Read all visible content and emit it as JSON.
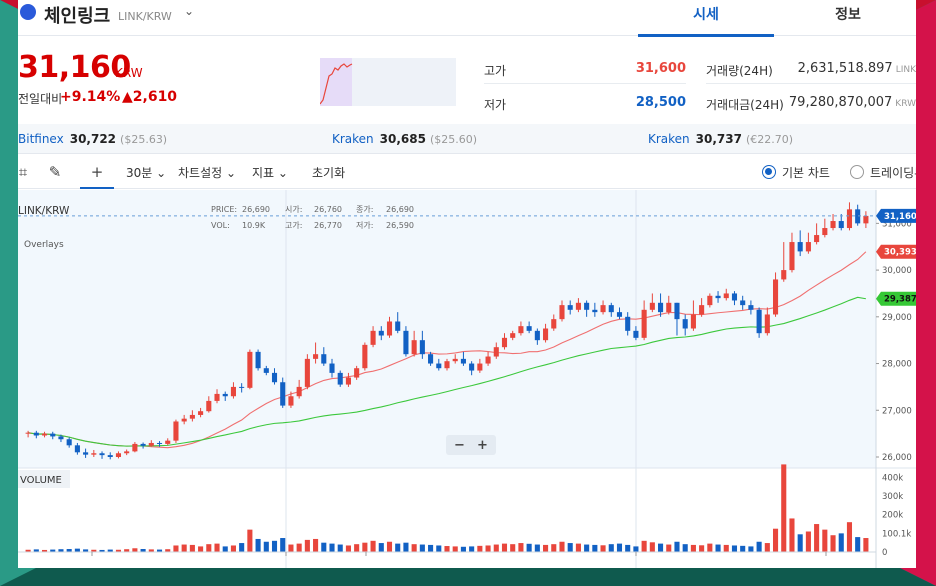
{
  "coin": {
    "name": "체인링크",
    "pair": "LINK/KRW",
    "caret": "⌄"
  },
  "tabs": {
    "quote": "시세",
    "info": "정보"
  },
  "price": {
    "current": "31,160",
    "unit": "KRW",
    "change_label": "전일대비",
    "change_pct": "+9.14%",
    "change_amt": "▲2,610"
  },
  "stats": {
    "high_label": "고가",
    "high_value": "31,600",
    "low_label": "저가",
    "low_value": "28,500",
    "volume_label": "거래량(24H)",
    "volume_value": "2,631,518.897",
    "volume_unit": "LINK",
    "amount_label": "거래대금(24H)",
    "amount_value": "79,280,870,007",
    "amount_unit": "KRW"
  },
  "exchanges": [
    {
      "name": "Bitfinex",
      "price": "30,722",
      "ref": "($25.63)"
    },
    {
      "name": "Kraken",
      "price": "30,685",
      "ref": "($25.60)"
    },
    {
      "name": "Kraken",
      "price": "30,737",
      "ref": "(€22.70)"
    }
  ],
  "toolbar": {
    "interval": "30분 ⌄",
    "chart_settings": "차트설정 ⌄",
    "indicators": "지표 ⌄",
    "reset": "초기화",
    "basic_chart": "기본 차트",
    "tradingview": "트레이딩뷰"
  },
  "colors": {
    "up": "#e8463c",
    "down": "#1261c4",
    "ma_short": "#f07070",
    "ma_long": "#3cc83c",
    "accent": "#1261c4"
  },
  "icons": [
    "crosshair-icon",
    "pencil-icon",
    "plus-icon",
    "zoom-out-icon",
    "zoom-in-icon"
  ],
  "chart_data": {
    "type": "candlestick",
    "symbol_label": "LINK/KRW",
    "overlays_label": "Overlays",
    "volume_label": "VOLUME",
    "legend": {
      "price_key": "PRICE:",
      "price_val": "26,690",
      "open_key": "시가:",
      "open_val": "26,760",
      "close_key": "종가:",
      "close_val": "26,690",
      "vol_key": "VOL:",
      "vol_val": "10.9K",
      "high_key": "고가:",
      "high_val": "26,770",
      "low_key": "저가:",
      "low_val": "26,590"
    },
    "price_ticks": [
      "26,000",
      "27,000",
      "28,000",
      "29,000",
      "30,000",
      "31,000"
    ],
    "volume_ticks": [
      "0",
      "100.1k",
      "200k",
      "300k",
      "400k"
    ],
    "ylim": [
      25850,
      31500
    ],
    "vol_max": 440000,
    "current_price": 31160,
    "current_price_label": "31,160",
    "ma_short_last": 30393,
    "ma_short_label": "30,393",
    "ma_long_last": 29387,
    "ma_long_label": "29,387",
    "zoom_out_label": "−",
    "zoom_in_label": "+",
    "candles": [
      [
        26500,
        26520,
        26420,
        26560
      ],
      [
        26520,
        26460,
        26400,
        26560
      ],
      [
        26460,
        26500,
        26420,
        26540
      ],
      [
        26500,
        26440,
        26380,
        26540
      ],
      [
        26440,
        26380,
        26320,
        26480
      ],
      [
        26380,
        26250,
        26200,
        26420
      ],
      [
        26250,
        26100,
        26050,
        26300
      ],
      [
        26100,
        26050,
        25980,
        26180
      ],
      [
        26050,
        26080,
        26000,
        26150
      ],
      [
        26080,
        26040,
        25960,
        26120
      ],
      [
        26040,
        26000,
        25950,
        26100
      ],
      [
        26000,
        26080,
        25970,
        26120
      ],
      [
        26080,
        26120,
        26040,
        26160
      ],
      [
        26120,
        26280,
        26100,
        26320
      ],
      [
        26280,
        26240,
        26180,
        26310
      ],
      [
        26240,
        26300,
        26220,
        26360
      ],
      [
        26300,
        26280,
        26220,
        26340
      ],
      [
        26280,
        26350,
        26250,
        26400
      ],
      [
        26350,
        26760,
        26300,
        26800
      ],
      [
        26760,
        26820,
        26700,
        26900
      ],
      [
        26820,
        26900,
        26760,
        27000
      ],
      [
        26900,
        26980,
        26850,
        27050
      ],
      [
        26980,
        27200,
        26950,
        27300
      ],
      [
        27200,
        27350,
        27150,
        27450
      ],
      [
        27350,
        27300,
        27200,
        27400
      ],
      [
        27300,
        27500,
        27250,
        27600
      ],
      [
        27500,
        27480,
        27380,
        27580
      ],
      [
        27480,
        28250,
        27450,
        28300
      ],
      [
        28250,
        27900,
        27850,
        28300
      ],
      [
        27900,
        27800,
        27750,
        27950
      ],
      [
        27800,
        27600,
        27550,
        27900
      ],
      [
        27600,
        27100,
        27050,
        27700
      ],
      [
        27100,
        27300,
        27050,
        27400
      ],
      [
        27300,
        27500,
        27250,
        27650
      ],
      [
        27500,
        28100,
        27450,
        28200
      ],
      [
        28100,
        28200,
        28000,
        28450
      ],
      [
        28200,
        28000,
        27950,
        28350
      ],
      [
        28000,
        27800,
        27700,
        28100
      ],
      [
        27800,
        27550,
        27500,
        27850
      ],
      [
        27550,
        27700,
        27500,
        27800
      ],
      [
        27700,
        27900,
        27650,
        27950
      ],
      [
        27900,
        28400,
        27850,
        28450
      ],
      [
        28400,
        28700,
        28350,
        28800
      ],
      [
        28700,
        28600,
        28500,
        28800
      ],
      [
        28600,
        28900,
        28550,
        29000
      ],
      [
        28900,
        28700,
        28650,
        29100
      ],
      [
        28700,
        28200,
        28150,
        28800
      ],
      [
        28200,
        28500,
        28150,
        28700
      ],
      [
        28500,
        28200,
        28100,
        28700
      ],
      [
        28200,
        28000,
        27950,
        28250
      ],
      [
        28000,
        27900,
        27850,
        28100
      ],
      [
        27900,
        28050,
        27850,
        28100
      ],
      [
        28050,
        28100,
        28000,
        28200
      ],
      [
        28100,
        28000,
        27950,
        28250
      ],
      [
        28000,
        27850,
        27750,
        28050
      ],
      [
        27850,
        28000,
        27800,
        28100
      ],
      [
        28000,
        28150,
        27950,
        28250
      ],
      [
        28150,
        28350,
        28100,
        28450
      ],
      [
        28350,
        28550,
        28300,
        28650
      ],
      [
        28550,
        28650,
        28500,
        28700
      ],
      [
        28650,
        28800,
        28600,
        28900
      ],
      [
        28800,
        28700,
        28650,
        28900
      ],
      [
        28700,
        28500,
        28400,
        28750
      ],
      [
        28500,
        28750,
        28450,
        28850
      ],
      [
        28750,
        28950,
        28700,
        29050
      ],
      [
        28950,
        29250,
        28900,
        29350
      ],
      [
        29250,
        29150,
        29050,
        29350
      ],
      [
        29150,
        29300,
        29100,
        29400
      ],
      [
        29300,
        29150,
        29000,
        29350
      ],
      [
        29150,
        29100,
        29000,
        29300
      ],
      [
        29100,
        29250,
        29050,
        29350
      ],
      [
        29250,
        29100,
        29000,
        29300
      ],
      [
        29100,
        29000,
        28950,
        29200
      ],
      [
        29000,
        28700,
        28600,
        29100
      ],
      [
        28700,
        28550,
        28500,
        28800
      ],
      [
        28550,
        29150,
        28500,
        29350
      ],
      [
        29150,
        29300,
        29100,
        29500
      ],
      [
        29300,
        29100,
        29000,
        29500
      ],
      [
        29100,
        29300,
        29050,
        29450
      ],
      [
        29300,
        28950,
        28600,
        29300
      ],
      [
        28950,
        28750,
        28600,
        29050
      ],
      [
        28750,
        29050,
        28700,
        29350
      ],
      [
        29050,
        29250,
        29000,
        29400
      ],
      [
        29250,
        29450,
        29200,
        29500
      ],
      [
        29450,
        29400,
        29300,
        29550
      ],
      [
        29400,
        29500,
        29350,
        29600
      ],
      [
        29500,
        29350,
        29250,
        29550
      ],
      [
        29350,
        29250,
        29150,
        29450
      ],
      [
        29250,
        29150,
        29050,
        29350
      ],
      [
        29150,
        28650,
        28550,
        29200
      ],
      [
        28650,
        29050,
        28600,
        29200
      ],
      [
        29050,
        29800,
        29000,
        29950
      ],
      [
        29800,
        30000,
        29750,
        30600
      ],
      [
        30000,
        30600,
        29950,
        30800
      ],
      [
        30600,
        30400,
        30300,
        30850
      ],
      [
        30400,
        30600,
        30350,
        30800
      ],
      [
        30600,
        30750,
        30550,
        31000
      ],
      [
        30750,
        30900,
        30700,
        31100
      ],
      [
        30900,
        31050,
        30850,
        31200
      ],
      [
        31050,
        30900,
        30850,
        31200
      ],
      [
        30900,
        31300,
        30850,
        31450
      ],
      [
        31300,
        31000,
        30950,
        31400
      ],
      [
        31000,
        31160,
        30900,
        31260
      ]
    ],
    "volumes": [
      12000,
      14000,
      11000,
      13000,
      15000,
      16000,
      18000,
      14000,
      12000,
      11000,
      13000,
      12000,
      15000,
      20000,
      16000,
      14000,
      13000,
      15000,
      35000,
      40000,
      38000,
      30000,
      42000,
      45000,
      30000,
      35000,
      48000,
      120000,
      70000,
      55000,
      60000,
      75000,
      40000,
      45000,
      65000,
      70000,
      50000,
      45000,
      40000,
      35000,
      42000,
      50000,
      60000,
      48000,
      55000,
      45000,
      50000,
      42000,
      40000,
      38000,
      35000,
      32000,
      30000,
      28000,
      30000,
      33000,
      35000,
      40000,
      45000,
      42000,
      48000,
      44000,
      40000,
      38000,
      42000,
      55000,
      48000,
      45000,
      40000,
      38000,
      36000,
      42000,
      45000,
      38000,
      30000,
      60000,
      52000,
      45000,
      40000,
      55000,
      42000,
      38000,
      36000,
      45000,
      40000,
      38000,
      35000,
      33000,
      30000,
      55000,
      48000,
      125000,
      470000,
      180000,
      95000,
      110000,
      150000,
      120000,
      90000,
      100000,
      160000,
      80000,
      75000
    ]
  }
}
